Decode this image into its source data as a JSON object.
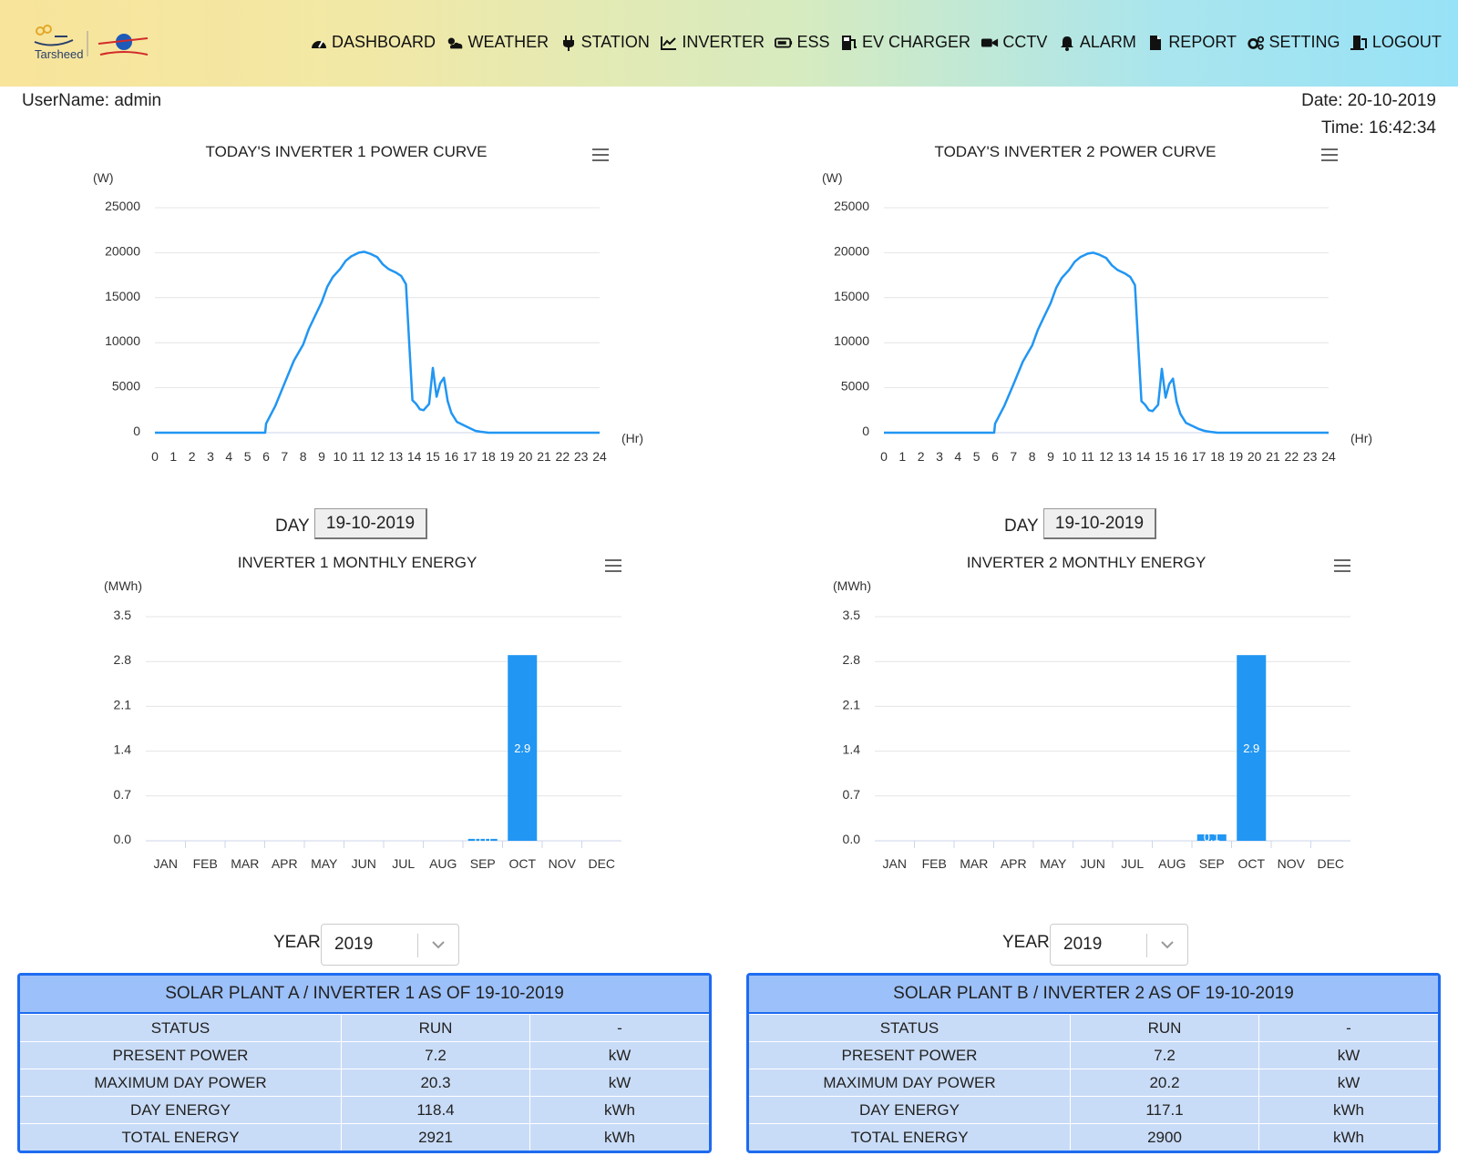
{
  "header": {
    "logo_text": "Tarsheed",
    "nav": [
      {
        "label": "DASHBOARD",
        "icon": "dashboard-icon"
      },
      {
        "label": "WEATHER",
        "icon": "weather-icon"
      },
      {
        "label": "STATION",
        "icon": "plug-icon"
      },
      {
        "label": "INVERTER",
        "icon": "line-chart-icon"
      },
      {
        "label": "ESS",
        "icon": "battery-icon"
      },
      {
        "label": "EV CHARGER",
        "icon": "ev-charger-icon"
      },
      {
        "label": "CCTV",
        "icon": "camera-icon"
      },
      {
        "label": "ALARM",
        "icon": "bell-icon"
      },
      {
        "label": "REPORT",
        "icon": "file-icon"
      },
      {
        "label": "SETTING",
        "icon": "gears-icon"
      },
      {
        "label": "LOGOUT",
        "icon": "logout-icon"
      }
    ]
  },
  "user": {
    "username": "UserName: admin",
    "date": "Date: 20-10-2019",
    "time": "Time: 16:42:34"
  },
  "accent_color": "#2196f3",
  "day_picker": {
    "label": "DAY",
    "value": "19-10-2019"
  },
  "year_picker": {
    "label": "YEAR",
    "value": "2019"
  },
  "chart_data": [
    {
      "type": "line",
      "title": "TODAY'S INVERTER 1 POWER CURVE",
      "ylabel": "(W)",
      "xlabel": "(Hr)",
      "xlim": [
        0,
        24
      ],
      "ylim": [
        0,
        25000
      ],
      "yticks": [
        "0",
        "5000",
        "10000",
        "15000",
        "20000",
        "25000"
      ],
      "xticks": [
        "0",
        "1",
        "2",
        "3",
        "4",
        "5",
        "6",
        "7",
        "8",
        "9",
        "10",
        "11",
        "12",
        "13",
        "14",
        "15",
        "16",
        "17",
        "18",
        "19",
        "20",
        "21",
        "22",
        "23",
        "24"
      ],
      "series": [
        {
          "x": [
            0,
            5.95,
            6.0,
            6.5,
            7,
            7.5,
            8,
            8.3,
            8.6,
            9,
            9.3,
            9.6,
            10,
            10.3,
            10.6,
            11,
            11.3,
            11.6,
            12,
            12.3,
            12.6,
            13,
            13.3,
            13.55,
            13.75,
            13.9,
            14.1,
            14.3,
            14.5,
            14.8,
            15.0,
            15.2,
            15.4,
            15.6,
            15.8,
            16.0,
            16.3,
            16.6,
            17.0,
            17.3,
            17.6,
            18.0,
            24
          ],
          "y": [
            0,
            0,
            1000,
            3000,
            5500,
            8000,
            9800,
            11500,
            12800,
            14500,
            16200,
            17300,
            18200,
            19100,
            19600,
            20000,
            20100,
            19900,
            19500,
            18700,
            18200,
            17800,
            17400,
            16500,
            9000,
            3600,
            3200,
            2600,
            2500,
            3200,
            7200,
            4000,
            5500,
            6100,
            3500,
            2200,
            1200,
            900,
            500,
            200,
            100,
            0,
            0
          ]
        }
      ]
    },
    {
      "type": "line",
      "title": "TODAY'S INVERTER 2 POWER CURVE",
      "ylabel": "(W)",
      "xlabel": "(Hr)",
      "xlim": [
        0,
        24
      ],
      "ylim": [
        0,
        25000
      ],
      "yticks": [
        "0",
        "5000",
        "10000",
        "15000",
        "20000",
        "25000"
      ],
      "xticks": [
        "0",
        "1",
        "2",
        "3",
        "4",
        "5",
        "6",
        "7",
        "8",
        "9",
        "10",
        "11",
        "12",
        "13",
        "14",
        "15",
        "16",
        "17",
        "18",
        "19",
        "20",
        "21",
        "22",
        "23",
        "24"
      ],
      "series": [
        {
          "x": [
            0,
            5.95,
            6.0,
            6.5,
            7,
            7.5,
            8,
            8.3,
            8.6,
            9,
            9.3,
            9.6,
            10,
            10.3,
            10.6,
            11,
            11.3,
            11.6,
            12,
            12.3,
            12.6,
            13,
            13.3,
            13.55,
            13.75,
            13.9,
            14.1,
            14.3,
            14.5,
            14.8,
            15.0,
            15.2,
            15.4,
            15.6,
            15.8,
            16.0,
            16.3,
            16.6,
            17.0,
            17.3,
            17.6,
            18.0,
            24
          ],
          "y": [
            0,
            0,
            1000,
            3000,
            5400,
            7900,
            9700,
            11400,
            12700,
            14400,
            16100,
            17200,
            18100,
            19000,
            19500,
            19900,
            20000,
            19800,
            19400,
            18600,
            18100,
            17700,
            17300,
            16400,
            8900,
            3500,
            3100,
            2500,
            2400,
            3100,
            7100,
            3900,
            5400,
            6000,
            3400,
            2100,
            1100,
            800,
            400,
            200,
            100,
            0,
            0
          ]
        }
      ]
    },
    {
      "type": "bar",
      "title": "INVERTER 1 MONTHLY ENERGY",
      "ylabel": "(MWh)",
      "ylim": [
        0,
        3.5
      ],
      "yticks": [
        "0.0",
        "0.7",
        "1.4",
        "2.1",
        "2.8",
        "3.5"
      ],
      "categories": [
        "JAN",
        "FEB",
        "MAR",
        "APR",
        "MAY",
        "JUN",
        "JUL",
        "AUG",
        "SEP",
        "OCT",
        "NOV",
        "DEC"
      ],
      "values": [
        0,
        0,
        0,
        0,
        0,
        0,
        0,
        0,
        0.03,
        2.9,
        0,
        0
      ],
      "data_labels": [
        "",
        "",
        "",
        "",
        "",
        "",
        "",
        "",
        "0.0",
        "2.9",
        "",
        ""
      ]
    },
    {
      "type": "bar",
      "title": "INVERTER 2 MONTHLY ENERGY",
      "ylabel": "(MWh)",
      "ylim": [
        0,
        3.5
      ],
      "yticks": [
        "0.0",
        "0.7",
        "1.4",
        "2.1",
        "2.8",
        "3.5"
      ],
      "categories": [
        "JAN",
        "FEB",
        "MAR",
        "APR",
        "MAY",
        "JUN",
        "JUL",
        "AUG",
        "SEP",
        "OCT",
        "NOV",
        "DEC"
      ],
      "values": [
        0,
        0,
        0,
        0,
        0,
        0,
        0,
        0,
        0.1,
        2.9,
        0,
        0
      ],
      "data_labels": [
        "",
        "",
        "",
        "",
        "",
        "",
        "",
        "",
        "0.1",
        "2.9",
        "",
        ""
      ]
    }
  ],
  "tables": [
    {
      "title": "SOLAR PLANT A / INVERTER 1 AS OF 19-10-2019",
      "rows": [
        [
          "STATUS",
          "RUN",
          "-"
        ],
        [
          "PRESENT POWER",
          "7.2",
          "kW"
        ],
        [
          "MAXIMUM DAY POWER",
          "20.3",
          "kW"
        ],
        [
          "DAY ENERGY",
          "118.4",
          "kWh"
        ],
        [
          "TOTAL ENERGY",
          "2921",
          "kWh"
        ]
      ]
    },
    {
      "title": "SOLAR PLANT B / INVERTER 2 AS OF 19-10-2019",
      "rows": [
        [
          "STATUS",
          "RUN",
          "-"
        ],
        [
          "PRESENT POWER",
          "7.2",
          "kW"
        ],
        [
          "MAXIMUM DAY POWER",
          "20.2",
          "kW"
        ],
        [
          "DAY ENERGY",
          "117.1",
          "kWh"
        ],
        [
          "TOTAL ENERGY",
          "2900",
          "kWh"
        ]
      ]
    }
  ]
}
